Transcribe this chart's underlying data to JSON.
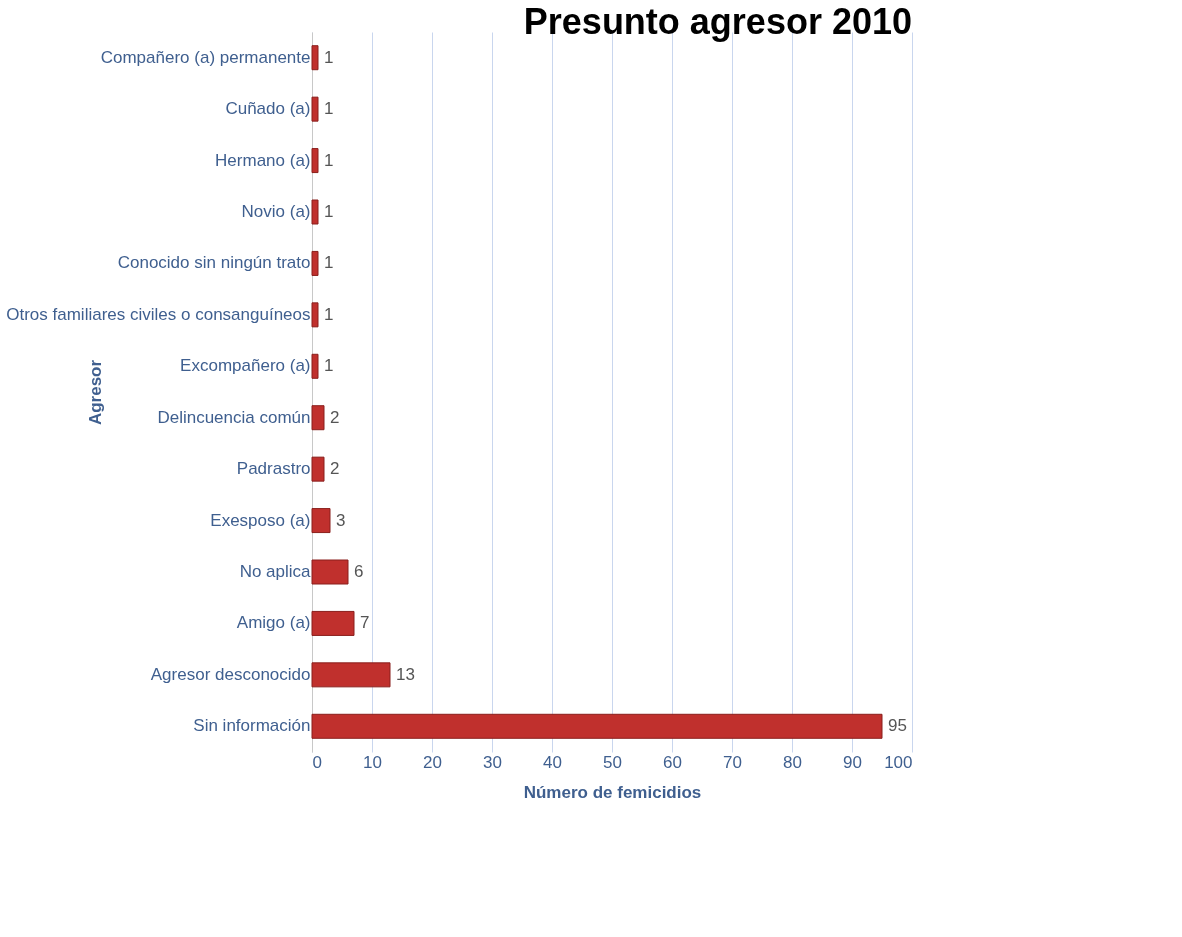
{
  "chart_data": {
    "type": "bar",
    "orientation": "horizontal",
    "title": "Presunto agresor 2010",
    "xlabel": "Número de femicidios",
    "ylabel": "Agresor",
    "categories": [
      "Compañero (a) permanente",
      "Cuñado (a)",
      "Hermano (a)",
      "Novio (a)",
      "Conocido sin ningún trato",
      "Otros familiares civiles o consanguíneos",
      "Excompañero (a)",
      "Delincuencia común",
      "Padrastro",
      "Exesposo (a)",
      "No aplica",
      "Amigo (a)",
      "Agresor desconocido",
      "Sin información"
    ],
    "values": [
      1,
      1,
      1,
      1,
      1,
      1,
      1,
      2,
      2,
      3,
      6,
      7,
      13,
      95
    ],
    "color": "#c0302d",
    "xlim": [
      0,
      100
    ],
    "xticks": [
      0,
      10,
      20,
      30,
      40,
      50,
      60,
      70,
      80,
      90,
      100
    ],
    "grid": "x",
    "data_labels": true
  }
}
